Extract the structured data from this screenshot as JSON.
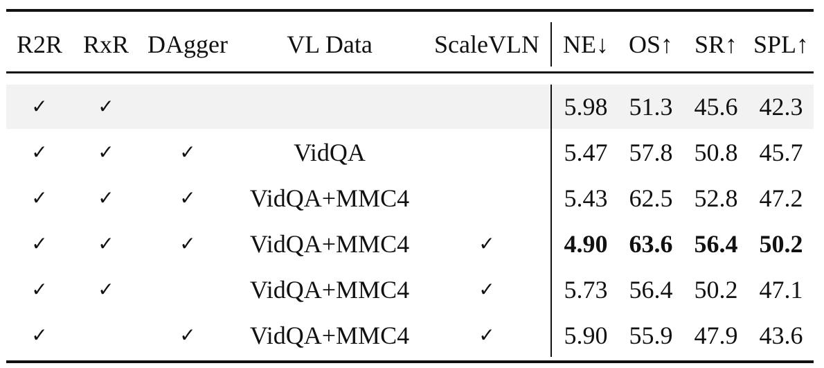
{
  "table": {
    "headers": {
      "r2r": "R2R",
      "rxr": "RxR",
      "dagger": "DAgger",
      "vl_data": "VL Data",
      "scalevln": "ScaleVLN",
      "ne": "NE↓",
      "os": "OS↑",
      "sr": "SR↑",
      "spl": "SPL↑"
    },
    "rows": [
      {
        "r2r": "✓",
        "rxr": "✓",
        "dagger": "",
        "vl_data": "",
        "scalevln": "",
        "ne": "5.98",
        "os": "51.3",
        "sr": "45.6",
        "spl": "42.3",
        "shaded": true,
        "bold": false
      },
      {
        "r2r": "✓",
        "rxr": "✓",
        "dagger": "✓",
        "vl_data": "VidQA",
        "scalevln": "",
        "ne": "5.47",
        "os": "57.8",
        "sr": "50.8",
        "spl": "45.7",
        "shaded": false,
        "bold": false
      },
      {
        "r2r": "✓",
        "rxr": "✓",
        "dagger": "✓",
        "vl_data": "VidQA+MMC4",
        "scalevln": "",
        "ne": "5.43",
        "os": "62.5",
        "sr": "52.8",
        "spl": "47.2",
        "shaded": false,
        "bold": false
      },
      {
        "r2r": "✓",
        "rxr": "✓",
        "dagger": "✓",
        "vl_data": "VidQA+MMC4",
        "scalevln": "✓",
        "ne": "4.90",
        "os": "63.6",
        "sr": "56.4",
        "spl": "50.2",
        "shaded": false,
        "bold": true
      },
      {
        "r2r": "✓",
        "rxr": "✓",
        "dagger": "",
        "vl_data": "VidQA+MMC4",
        "scalevln": "✓",
        "ne": "5.73",
        "os": "56.4",
        "sr": "50.2",
        "spl": "47.1",
        "shaded": false,
        "bold": false
      },
      {
        "r2r": "✓",
        "rxr": "",
        "dagger": "✓",
        "vl_data": "VidQA+MMC4",
        "scalevln": "✓",
        "ne": "5.90",
        "os": "55.9",
        "sr": "47.9",
        "spl": "43.6",
        "shaded": false,
        "bold": false
      }
    ]
  }
}
